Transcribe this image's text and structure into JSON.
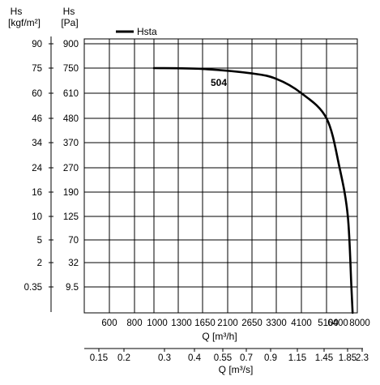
{
  "chart_data": {
    "type": "line",
    "x_axis_primary": {
      "label": "Q [m³/h]",
      "ticks": [
        "600",
        "800",
        "1000",
        "1300",
        "1650",
        "2100",
        "2650",
        "3300",
        "4100",
        "5100",
        "6400",
        "8000"
      ],
      "range": [
        0,
        8000
      ]
    },
    "x_axis_secondary": {
      "label": "Q [m³/s]",
      "ticks": [
        "0.15",
        "0.2",
        "0.3",
        "0.4",
        "0.55",
        "0.7",
        "0.9",
        "1.15",
        "1.45",
        "1.85",
        "2.3"
      ]
    },
    "y_axis_left": {
      "title_line1": "Hs",
      "title_line2": "[kgf/m²]",
      "ticks": [
        "90",
        "75",
        "60",
        "46",
        "34",
        "24",
        "16",
        "10",
        "5",
        "2",
        "0.35"
      ]
    },
    "y_axis_right": {
      "title_line1": "Hs",
      "title_line2": "[Pa]",
      "ticks": [
        "900",
        "750",
        "610",
        "480",
        "370",
        "270",
        "190",
        "125",
        "70",
        "32",
        "9.5"
      ],
      "range": [
        0,
        900
      ]
    },
    "series": [
      {
        "name": "Hsta",
        "annotation": "504",
        "color": "#000000",
        "points": [
          {
            "x": 1000,
            "y": 750
          },
          {
            "x": 1650,
            "y": 745
          },
          {
            "x": 2650,
            "y": 720
          },
          {
            "x": 3300,
            "y": 690
          },
          {
            "x": 4100,
            "y": 610
          },
          {
            "x": 5100,
            "y": 480
          },
          {
            "x": 5650,
            "y": 270
          },
          {
            "x": 6000,
            "y": 125
          },
          {
            "x": 6150,
            "y": 9.5
          },
          {
            "x": 6200,
            "y": 0
          }
        ]
      }
    ],
    "grid": true,
    "legend_placement": "top-left"
  }
}
